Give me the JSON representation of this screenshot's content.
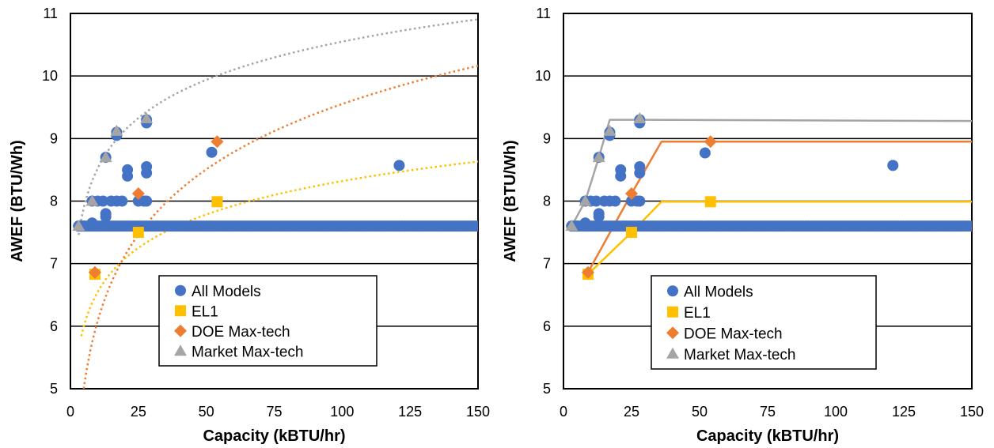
{
  "chart_data": [
    {
      "type": "scatter",
      "xlabel": "Capacity (kBTU/hr)",
      "ylabel": "AWEF (BTU/Wh)",
      "xlim": [
        0,
        150
      ],
      "ylim": [
        5,
        11
      ],
      "xticks": [
        0,
        25,
        50,
        75,
        100,
        125,
        150
      ],
      "yticks": [
        5,
        6,
        7,
        8,
        9,
        10,
        11
      ],
      "x_tick_labels": [
        "0",
        "25",
        "50",
        "75",
        "100",
        "125",
        "150"
      ],
      "y_tick_labels": [
        "5",
        "6",
        "7",
        "8",
        "9",
        "10",
        "11"
      ],
      "grid": "horizontal",
      "legend_position": "bottom-center",
      "fit_style": "dotted curves",
      "series": [
        {
          "name": "All Models",
          "marker": "circle",
          "color": "#4472C4",
          "baseline": {
            "y": 7.6,
            "x_start": 3,
            "x_end": 150
          },
          "points": [
            [
              3,
              7.6
            ],
            [
              5,
              7.6
            ],
            [
              8,
              8.0
            ],
            [
              8,
              7.65
            ],
            [
              10,
              8.0
            ],
            [
              12,
              8.0
            ],
            [
              13,
              7.75
            ],
            [
              13,
              7.8
            ],
            [
              13,
              8.7
            ],
            [
              15,
              8.0
            ],
            [
              17,
              8.0
            ],
            [
              17,
              9.05
            ],
            [
              17,
              9.1
            ],
            [
              19,
              8.0
            ],
            [
              21,
              8.4
            ],
            [
              21,
              8.5
            ],
            [
              25,
              8.0
            ],
            [
              27,
              8.0
            ],
            [
              28,
              8.0
            ],
            [
              28,
              8.45
            ],
            [
              28,
              8.55
            ],
            [
              28,
              9.25
            ],
            [
              28,
              9.3
            ],
            [
              52,
              8.78
            ],
            [
              121,
              8.57
            ]
          ]
        },
        {
          "name": "EL1",
          "marker": "square",
          "color": "#FFC000",
          "points": [
            [
              9,
              6.83
            ],
            [
              25,
              7.5
            ],
            [
              54,
              7.99
            ]
          ],
          "fit": {
            "a": 4.7715,
            "b": 0.7704,
            "x_start": 4,
            "x_end": 150
          }
        },
        {
          "name": "DOE Max-tech",
          "marker": "diamond",
          "color": "#ED7D31",
          "points": [
            [
              9,
              6.86
            ],
            [
              25,
              8.12
            ],
            [
              54,
              8.95
            ]
          ],
          "fit": {
            "a": 2.6098,
            "b": 1.5074,
            "x_start": 4,
            "x_end": 150
          }
        },
        {
          "name": "Market Max-tech",
          "marker": "triangle",
          "color": "#A5A5A5",
          "points": [
            [
              3,
              7.6
            ],
            [
              8,
              8.0
            ],
            [
              13,
              8.7
            ],
            [
              17,
              9.12
            ],
            [
              28,
              9.32
            ]
          ],
          "fit": {
            "a": 6.4922,
            "b": 0.8809,
            "x_start": 3,
            "x_end": 150
          }
        }
      ]
    },
    {
      "type": "scatter",
      "xlabel": "Capacity (kBTU/hr)",
      "ylabel": "AWEF (BTU/Wh)",
      "xlim": [
        0,
        150
      ],
      "ylim": [
        5,
        11
      ],
      "xticks": [
        0,
        25,
        50,
        75,
        100,
        125,
        150
      ],
      "yticks": [
        5,
        6,
        7,
        8,
        9,
        10,
        11
      ],
      "x_tick_labels": [
        "0",
        "25",
        "50",
        "75",
        "100",
        "125",
        "150"
      ],
      "y_tick_labels": [
        "5",
        "6",
        "7",
        "8",
        "9",
        "10",
        "11"
      ],
      "grid": "horizontal",
      "legend_position": "bottom-center",
      "fit_style": "solid piecewise lines",
      "series": [
        {
          "name": "All Models",
          "marker": "circle",
          "color": "#4472C4",
          "baseline": {
            "y": 7.6,
            "x_start": 3,
            "x_end": 150
          },
          "points": [
            [
              3,
              7.6
            ],
            [
              5,
              7.6
            ],
            [
              8,
              8.0
            ],
            [
              8,
              7.65
            ],
            [
              10,
              8.0
            ],
            [
              12,
              8.0
            ],
            [
              13,
              7.75
            ],
            [
              13,
              7.8
            ],
            [
              13,
              8.7
            ],
            [
              15,
              8.0
            ],
            [
              17,
              8.0
            ],
            [
              17,
              9.05
            ],
            [
              17,
              9.1
            ],
            [
              19,
              8.0
            ],
            [
              21,
              8.4
            ],
            [
              21,
              8.5
            ],
            [
              25,
              8.0
            ],
            [
              27,
              8.0
            ],
            [
              28,
              8.0
            ],
            [
              28,
              8.45
            ],
            [
              28,
              8.55
            ],
            [
              28,
              9.25
            ],
            [
              28,
              9.3
            ],
            [
              52,
              8.77
            ],
            [
              121,
              8.57
            ]
          ]
        },
        {
          "name": "EL1",
          "marker": "square",
          "color": "#FFC000",
          "points": [
            [
              9,
              6.83
            ],
            [
              25,
              7.5
            ],
            [
              54,
              7.99
            ]
          ],
          "line": [
            [
              9,
              6.83
            ],
            [
              25,
              7.5
            ],
            [
              36,
              7.99
            ],
            [
              150,
              7.99
            ]
          ]
        },
        {
          "name": "DOE Max-tech",
          "marker": "diamond",
          "color": "#ED7D31",
          "points": [
            [
              9,
              6.86
            ],
            [
              25,
              8.12
            ],
            [
              54,
              8.95
            ]
          ],
          "line": [
            [
              9,
              6.86
            ],
            [
              25,
              8.12
            ],
            [
              36,
              8.95
            ],
            [
              150,
              8.95
            ]
          ]
        },
        {
          "name": "Market Max-tech",
          "marker": "triangle",
          "color": "#A5A5A5",
          "points": [
            [
              3,
              7.6
            ],
            [
              8,
              8.0
            ],
            [
              13,
              8.7
            ],
            [
              17,
              9.12
            ],
            [
              28,
              9.32
            ]
          ],
          "line": [
            [
              3,
              7.6
            ],
            [
              8,
              8.0
            ],
            [
              13,
              8.7
            ],
            [
              17,
              9.3
            ],
            [
              28,
              9.3
            ],
            [
              150,
              9.28
            ]
          ]
        }
      ]
    }
  ]
}
